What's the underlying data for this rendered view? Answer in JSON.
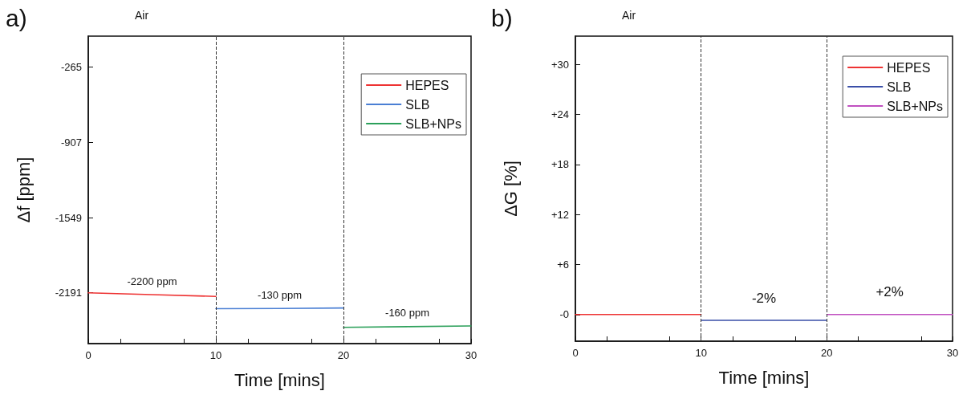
{
  "chart_data": [
    {
      "type": "line",
      "title": "a)",
      "xlabel": "Time [mins]",
      "ylabel": "Δf [ppm]",
      "xlim": [
        0,
        30
      ],
      "xticks": [
        0,
        10,
        20,
        30
      ],
      "ylim": [
        -2625,
        0
      ],
      "yticks": [
        -265,
        -907,
        -1549,
        -2191
      ],
      "series": [
        {
          "name": "HEPES",
          "color": "#ee3333",
          "x": [
            0,
            5,
            10
          ],
          "values": [
            -2191,
            -2207,
            -2222
          ]
        },
        {
          "name": "SLB",
          "color": "#4a7fd4",
          "x": [
            10,
            15,
            20
          ],
          "values": [
            -2327,
            -2325,
            -2321
          ]
        },
        {
          "name": "SLB+NPs",
          "color": "#2ca05a",
          "x": [
            20,
            25,
            30
          ],
          "values": [
            -2486,
            -2480,
            -2474
          ]
        }
      ],
      "ref_lines": [
        {
          "axis": "x",
          "value": 10,
          "color": "#333333",
          "line_style": "dashed"
        },
        {
          "axis": "x",
          "value": 20,
          "color": "#333333",
          "line_style": "dashed"
        }
      ],
      "annotations": [
        "Air",
        {
          "text": "-2200 ppm",
          "x": 5,
          "y": -2207
        },
        {
          "text": "-130 ppm",
          "x": 15,
          "y": -2325
        },
        {
          "text": "-160 ppm",
          "x": 25,
          "y": -2480
        }
      ],
      "legend": "top right",
      "grid": false,
      "marker": "none",
      "line_style": "solid"
    },
    {
      "type": "line",
      "title": "b)",
      "xlabel": "Time [mins]",
      "ylabel": "ΔG [%]",
      "xlim": [
        0,
        30
      ],
      "xticks": [
        0,
        10,
        20,
        30
      ],
      "ylim": [
        -3.2,
        33.4
      ],
      "yticks": [
        {
          "value": 0,
          "label": "-0"
        },
        {
          "value": 6,
          "label": "+6"
        },
        {
          "value": 12,
          "label": "+12"
        },
        {
          "value": 18,
          "label": "+18"
        },
        {
          "value": 24,
          "label": "+24"
        },
        {
          "value": 30,
          "label": "+30"
        }
      ],
      "series": [
        {
          "name": "HEPES",
          "color": "#ee3333",
          "x": [
            0,
            5,
            10
          ],
          "values": [
            0,
            0,
            0
          ]
        },
        {
          "name": "SLB",
          "color": "#3a4fa8",
          "x": [
            10,
            15,
            20
          ],
          "values": [
            -0.7,
            -0.7,
            -0.7
          ]
        },
        {
          "name": "SLB+NPs",
          "color": "#c050c0",
          "x": [
            20,
            25,
            30
          ],
          "values": [
            0,
            0,
            0
          ]
        }
      ],
      "ref_lines": [
        {
          "axis": "x",
          "value": 10,
          "color": "#333333",
          "line_style": "dashed"
        },
        {
          "axis": "x",
          "value": 20,
          "color": "#333333",
          "line_style": "dashed"
        }
      ],
      "annotations": [
        "Air",
        {
          "text": "-2%",
          "x": 15,
          "y": -0.7
        },
        {
          "text": "+2%",
          "x": 25,
          "y": 0
        }
      ],
      "legend": "top right",
      "grid": false,
      "marker": "none",
      "line_style": "solid"
    }
  ]
}
